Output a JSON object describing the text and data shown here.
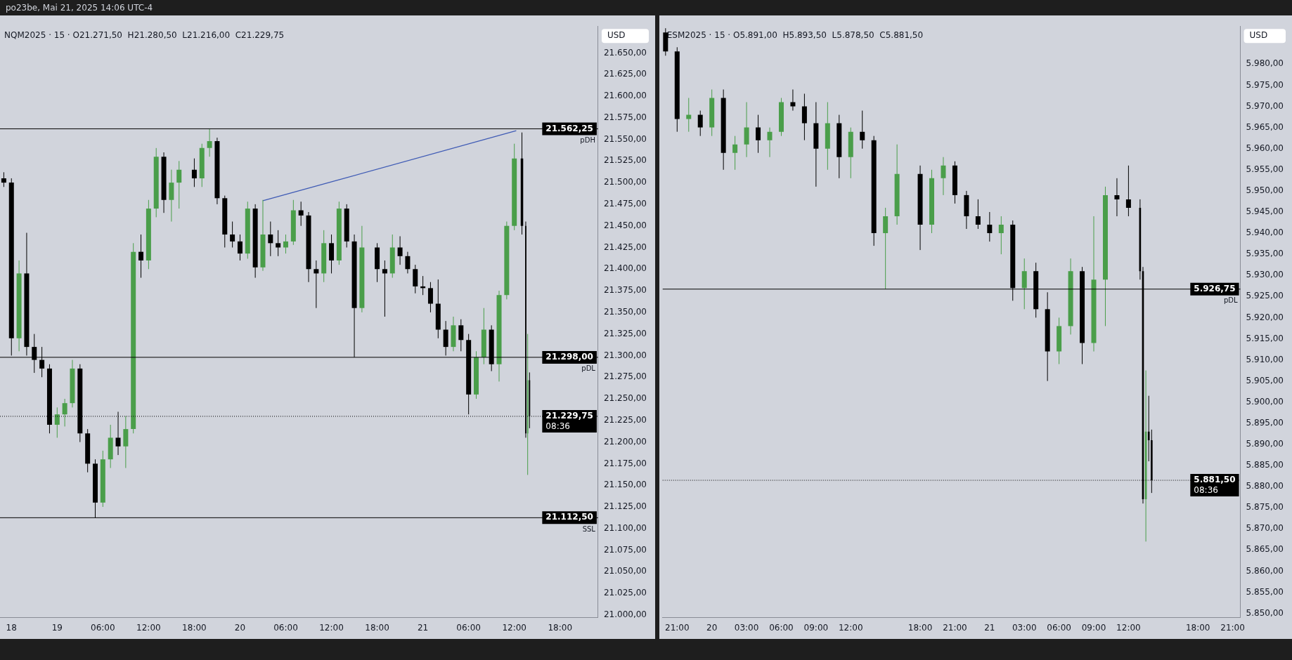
{
  "chart_data": [
    {
      "type": "candlestick",
      "title": "NQM2025 · 15 · O21.271,50  H21.280,50  L21.216,00  C21.229,75",
      "ylabel": "USD",
      "annotations": [
        "po23be, Mai 21, 2025 14:06 UTC-4",
        {
          "text": "pDH",
          "y": 21562.25
        },
        {
          "text": "pDL",
          "y": 21298
        },
        {
          "text": "SSL",
          "y": 21112.5
        },
        {
          "text": "08:36",
          "y": 21229.75
        }
      ],
      "x": [
        "2025-05-18T17:00",
        "2025-05-18T18:00",
        "2025-05-18T19:00",
        "2025-05-18T20:00",
        "2025-05-18T21:00",
        "2025-05-18T22:00",
        "2025-05-18T23:00",
        "2025-05-19T00:00",
        "2025-05-19T01:00",
        "2025-05-19T02:00",
        "2025-05-19T03:00",
        "2025-05-19T04:00",
        "2025-05-19T05:00",
        "2025-05-19T06:00",
        "2025-05-19T07:00",
        "2025-05-19T08:00",
        "2025-05-19T09:00",
        "2025-05-19T10:00",
        "2025-05-19T11:00",
        "2025-05-19T12:00",
        "2025-05-19T13:00",
        "2025-05-19T14:00",
        "2025-05-19T15:00",
        "2025-05-19T16:00",
        "2025-05-19T18:00",
        "2025-05-19T19:00",
        "2025-05-19T20:00",
        "2025-05-19T21:00",
        "2025-05-19T22:00",
        "2025-05-19T23:00",
        "2025-05-20T00:00",
        "2025-05-20T01:00",
        "2025-05-20T02:00",
        "2025-05-20T03:00",
        "2025-05-20T04:00",
        "2025-05-20T05:00",
        "2025-05-20T06:00",
        "2025-05-20T07:00",
        "2025-05-20T08:00",
        "2025-05-20T09:00",
        "2025-05-20T10:00",
        "2025-05-20T11:00",
        "2025-05-20T12:00",
        "2025-05-20T13:00",
        "2025-05-20T14:00",
        "2025-05-20T15:00",
        "2025-05-20T16:00",
        "2025-05-20T18:00",
        "2025-05-20T19:00",
        "2025-05-20T20:00",
        "2025-05-20T21:00",
        "2025-05-20T22:00",
        "2025-05-20T23:00",
        "2025-05-21T00:00",
        "2025-05-21T01:00",
        "2025-05-21T02:00",
        "2025-05-21T03:00",
        "2025-05-21T04:00",
        "2025-05-21T05:00",
        "2025-05-21T06:00",
        "2025-05-21T07:00",
        "2025-05-21T08:00",
        "2025-05-21T09:00",
        "2025-05-21T10:00",
        "2025-05-21T11:00",
        "2025-05-21T12:00",
        "2025-05-21T13:00",
        "2025-05-21T13:30",
        "2025-05-21T13:45",
        "2025-05-21T14:00"
      ],
      "ohlc": [
        [
          21505,
          21512,
          21495,
          21500
        ],
        [
          21500,
          21505,
          21300,
          21320
        ],
        [
          21320,
          21410,
          21305,
          21395
        ],
        [
          21395,
          21442,
          21300,
          21310
        ],
        [
          21310,
          21325,
          21280,
          21295
        ],
        [
          21295,
          21310,
          21275,
          21285
        ],
        [
          21285,
          21290,
          21210,
          21220
        ],
        [
          21220,
          21240,
          21205,
          21232
        ],
        [
          21232,
          21250,
          21218,
          21245
        ],
        [
          21245,
          21295,
          21240,
          21285
        ],
        [
          21285,
          21290,
          21200,
          21210
        ],
        [
          21210,
          21215,
          21165,
          21175
        ],
        [
          21175,
          21180,
          21112.5,
          21130
        ],
        [
          21130,
          21190,
          21125,
          21180
        ],
        [
          21180,
          21220,
          21170,
          21205
        ],
        [
          21205,
          21235,
          21185,
          21195
        ],
        [
          21195,
          21230,
          21170,
          21215
        ],
        [
          21215,
          21430,
          21210,
          21420
        ],
        [
          21420,
          21440,
          21390,
          21410
        ],
        [
          21410,
          21480,
          21400,
          21470
        ],
        [
          21470,
          21540,
          21460,
          21530
        ],
        [
          21530,
          21535,
          21465,
          21480
        ],
        [
          21480,
          21515,
          21455,
          21500
        ],
        [
          21500,
          21525,
          21470,
          21515
        ],
        [
          21515,
          21528,
          21495,
          21505
        ],
        [
          21505,
          21545,
          21495,
          21540
        ],
        [
          21540,
          21562.25,
          21530,
          21548
        ],
        [
          21548,
          21552,
          21475,
          21482
        ],
        [
          21482,
          21485,
          21425,
          21440
        ],
        [
          21440,
          21455,
          21425,
          21432
        ],
        [
          21432,
          21440,
          21410,
          21418
        ],
        [
          21418,
          21478,
          21412,
          21470
        ],
        [
          21470,
          21475,
          21390,
          21402
        ],
        [
          21402,
          21480,
          21398,
          21440
        ],
        [
          21440,
          21455,
          21415,
          21430
        ],
        [
          21430,
          21445,
          21415,
          21425
        ],
        [
          21425,
          21440,
          21418,
          21432
        ],
        [
          21432,
          21480,
          21428,
          21468
        ],
        [
          21468,
          21478,
          21450,
          21462
        ],
        [
          21462,
          21466,
          21385,
          21400
        ],
        [
          21400,
          21410,
          21355,
          21395
        ],
        [
          21395,
          21445,
          21385,
          21430
        ],
        [
          21430,
          21440,
          21395,
          21410
        ],
        [
          21410,
          21478,
          21405,
          21470
        ],
        [
          21470,
          21475,
          21425,
          21432
        ],
        [
          21432,
          21440,
          21298,
          21355
        ],
        [
          21355,
          21450,
          21350,
          21425
        ],
        [
          21425,
          21430,
          21385,
          21400
        ],
        [
          21400,
          21410,
          21345,
          21395
        ],
        [
          21395,
          21440,
          21390,
          21425
        ],
        [
          21425,
          21438,
          21405,
          21415
        ],
        [
          21415,
          21420,
          21395,
          21400
        ],
        [
          21400,
          21405,
          21372,
          21380
        ],
        [
          21380,
          21392,
          21370,
          21378
        ],
        [
          21378,
          21385,
          21350,
          21360
        ],
        [
          21360,
          21388,
          21320,
          21330
        ],
        [
          21330,
          21340,
          21300,
          21310
        ],
        [
          21310,
          21345,
          21305,
          21335
        ],
        [
          21335,
          21342,
          21305,
          21318
        ],
        [
          21318,
          21325,
          21232,
          21255
        ],
        [
          21255,
          21305,
          21250,
          21298
        ],
        [
          21298,
          21355,
          21290,
          21330
        ],
        [
          21330,
          21335,
          21282,
          21290
        ],
        [
          21290,
          21375,
          21270,
          21370
        ],
        [
          21370,
          21455,
          21365,
          21450
        ],
        [
          21450,
          21545,
          21445,
          21528
        ],
        [
          21528,
          21558,
          21440,
          21450
        ],
        [
          21450,
          21455,
          21205,
          21210
        ],
        [
          21210,
          21325,
          21162,
          21271.5
        ],
        [
          21271.5,
          21280.5,
          21216,
          21229.75
        ]
      ],
      "colors": [
        "#000000",
        "#000000",
        "#4a9e4a",
        "#000000",
        "#000000",
        "#000000",
        "#000000",
        "#4a9e4a",
        "#4a9e4a",
        "#4a9e4a",
        "#000000",
        "#000000",
        "#000000",
        "#4a9e4a",
        "#4a9e4a",
        "#000000",
        "#4a9e4a",
        "#4a9e4a",
        "#000000",
        "#4a9e4a",
        "#4a9e4a",
        "#000000",
        "#4a9e4a",
        "#4a9e4a",
        "#000000",
        "#4a9e4a",
        "#4a9e4a",
        "#000000",
        "#000000",
        "#000000",
        "#000000",
        "#4a9e4a",
        "#000000",
        "#4a9e4a",
        "#000000",
        "#000000",
        "#4a9e4a",
        "#4a9e4a",
        "#000000",
        "#000000",
        "#000000",
        "#4a9e4a",
        "#000000",
        "#4a9e4a",
        "#000000",
        "#000000",
        "#4a9e4a",
        "#000000",
        "#000000",
        "#4a9e4a",
        "#000000",
        "#000000",
        "#000000",
        "#000000",
        "#000000",
        "#000000",
        "#000000",
        "#4a9e4a",
        "#000000",
        "#000000",
        "#4a9e4a",
        "#4a9e4a",
        "#000000",
        "#4a9e4a",
        "#4a9e4a",
        "#4a9e4a",
        "#000000",
        "#000000",
        "#4a9e4a",
        "#000000"
      ],
      "series": [
        {
          "type": "line",
          "color": "#3f5bb5",
          "x": [
            "2025-05-20T03:00",
            "2025-05-21T12:15"
          ],
          "values": [
            21479,
            21560
          ]
        }
      ],
      "xlim": [
        "2025-05-18T16:30",
        "2025-05-21T23:00"
      ],
      "xticks": [
        {
          "value": "2025-05-18T18:00",
          "label": "18"
        },
        {
          "value": "2025-05-19T00:00",
          "label": "19"
        },
        {
          "value": "2025-05-19T06:00",
          "label": "06:00"
        },
        {
          "value": "2025-05-19T12:00",
          "label": "12:00"
        },
        {
          "value": "2025-05-19T18:00",
          "label": "18:00"
        },
        {
          "value": "2025-05-20T00:00",
          "label": "20"
        },
        {
          "value": "2025-05-20T06:00",
          "label": "06:00"
        },
        {
          "value": "2025-05-20T12:00",
          "label": "12:00"
        },
        {
          "value": "2025-05-20T18:00",
          "label": "18:00"
        },
        {
          "value": "2025-05-21T00:00",
          "label": "21"
        },
        {
          "value": "2025-05-21T06:00",
          "label": "06:00"
        },
        {
          "value": "2025-05-21T12:00",
          "label": "12:00"
        },
        {
          "value": "2025-05-21T18:00",
          "label": "18:00"
        }
      ],
      "ylim": [
        20997,
        21681
      ],
      "yticks": [
        {
          "value": 21000,
          "label": "21.000,00"
        },
        {
          "value": 21025,
          "label": "21.025,00"
        },
        {
          "value": 21050,
          "label": "21.050,00"
        },
        {
          "value": 21075,
          "label": "21.075,00"
        },
        {
          "value": 21100,
          "label": "21.100,00"
        },
        {
          "value": 21125,
          "label": "21.125,00"
        },
        {
          "value": 21150,
          "label": "21.150,00"
        },
        {
          "value": 21175,
          "label": "21.175,00"
        },
        {
          "value": 21200,
          "label": "21.200,00"
        },
        {
          "value": 21225,
          "label": "21.225,00"
        },
        {
          "value": 21250,
          "label": "21.250,00"
        },
        {
          "value": 21275,
          "label": "21.275,00"
        },
        {
          "value": 21300,
          "label": "21.300,00"
        },
        {
          "value": 21325,
          "label": "21.325,00"
        },
        {
          "value": 21350,
          "label": "21.350,00"
        },
        {
          "value": 21375,
          "label": "21.375,00"
        },
        {
          "value": 21400,
          "label": "21.400,00"
        },
        {
          "value": 21425,
          "label": "21.425,00"
        },
        {
          "value": 21450,
          "label": "21.450,00"
        },
        {
          "value": 21475,
          "label": "21.475,00"
        },
        {
          "value": 21500,
          "label": "21.500,00"
        },
        {
          "value": 21525,
          "label": "21.525,00"
        },
        {
          "value": 21550,
          "label": "21.550,00"
        },
        {
          "value": 21575,
          "label": "21.575,00"
        },
        {
          "value": 21600,
          "label": "21.600,00"
        },
        {
          "value": 21625,
          "label": "21.625,00"
        },
        {
          "value": 21650,
          "label": "21.650,00"
        }
      ],
      "ref_lines": [
        {
          "axis": "y",
          "value": 21562.25,
          "label": "21.562,25",
          "color": "#000000"
        },
        {
          "axis": "y",
          "value": 21298,
          "label": "21.298,00",
          "color": "#000000"
        },
        {
          "axis": "y",
          "value": 21112.5,
          "label": "21.112,50",
          "color": "#000000"
        },
        {
          "axis": "y",
          "value": 21229.75,
          "label": "21.229,75",
          "color": "#000000",
          "line_style": "dotted"
        }
      ]
    },
    {
      "type": "candlestick",
      "title": "ESM2025 · 15 · O5.891,00  H5.893,50  L5.878,50  C5.881,50",
      "ylabel": "USD",
      "annotations": [
        {
          "text": "pDL",
          "y": 5926.75
        },
        {
          "text": "08:36",
          "y": 5881.5
        }
      ],
      "x": [
        "2025-05-19T20:00",
        "2025-05-19T21:00",
        "2025-05-19T22:00",
        "2025-05-19T23:00",
        "2025-05-20T00:00",
        "2025-05-20T01:00",
        "2025-05-20T02:00",
        "2025-05-20T03:00",
        "2025-05-20T04:00",
        "2025-05-20T05:00",
        "2025-05-20T06:00",
        "2025-05-20T07:00",
        "2025-05-20T08:00",
        "2025-05-20T09:00",
        "2025-05-20T10:00",
        "2025-05-20T11:00",
        "2025-05-20T12:00",
        "2025-05-20T13:00",
        "2025-05-20T14:00",
        "2025-05-20T15:00",
        "2025-05-20T16:00",
        "2025-05-20T18:00",
        "2025-05-20T19:00",
        "2025-05-20T20:00",
        "2025-05-20T21:00",
        "2025-05-20T22:00",
        "2025-05-20T23:00",
        "2025-05-21T00:00",
        "2025-05-21T01:00",
        "2025-05-21T02:00",
        "2025-05-21T03:00",
        "2025-05-21T04:00",
        "2025-05-21T05:00",
        "2025-05-21T06:00",
        "2025-05-21T07:00",
        "2025-05-21T08:00",
        "2025-05-21T09:00",
        "2025-05-21T10:00",
        "2025-05-21T11:00",
        "2025-05-21T12:00",
        "2025-05-21T13:00",
        "2025-05-21T13:15",
        "2025-05-21T13:30",
        "2025-05-21T13:45",
        "2025-05-21T14:00"
      ],
      "ohlc": [
        [
          5987.5,
          5988.5,
          5982,
          5983
        ],
        [
          5983,
          5984,
          5964,
          5967
        ],
        [
          5967,
          5972,
          5964,
          5968
        ],
        [
          5968,
          5969,
          5963,
          5965
        ],
        [
          5965,
          5974,
          5963,
          5972
        ],
        [
          5972,
          5974,
          5955,
          5959
        ],
        [
          5959,
          5963,
          5955,
          5961
        ],
        [
          5961,
          5971,
          5958,
          5965
        ],
        [
          5965,
          5968,
          5959,
          5962
        ],
        [
          5962,
          5965,
          5958,
          5964
        ],
        [
          5964,
          5972,
          5963,
          5971
        ],
        [
          5971,
          5974,
          5969,
          5970
        ],
        [
          5970,
          5973,
          5962,
          5966
        ],
        [
          5966,
          5971,
          5951,
          5960
        ],
        [
          5960,
          5971,
          5955,
          5966
        ],
        [
          5966,
          5968,
          5953,
          5958
        ],
        [
          5958,
          5965,
          5953,
          5964
        ],
        [
          5964,
          5969,
          5960,
          5962
        ],
        [
          5962,
          5963,
          5937,
          5940
        ],
        [
          5940,
          5946,
          5926.75,
          5944
        ],
        [
          5944,
          5961,
          5942,
          5954
        ],
        [
          5954,
          5956,
          5936,
          5942
        ],
        [
          5942,
          5955,
          5940,
          5953
        ],
        [
          5953,
          5958,
          5949,
          5956
        ],
        [
          5956,
          5957,
          5947,
          5949
        ],
        [
          5949,
          5950,
          5941,
          5944
        ],
        [
          5944,
          5948,
          5941,
          5942
        ],
        [
          5942,
          5945,
          5938,
          5940
        ],
        [
          5940,
          5944,
          5935,
          5942
        ],
        [
          5942,
          5943,
          5924,
          5927
        ],
        [
          5927,
          5934,
          5922,
          5931
        ],
        [
          5931,
          5933,
          5920,
          5922
        ],
        [
          5922,
          5926,
          5905,
          5912
        ],
        [
          5912,
          5920,
          5909,
          5918
        ],
        [
          5918,
          5934,
          5916,
          5931
        ],
        [
          5931,
          5932,
          5909,
          5914
        ],
        [
          5914,
          5944,
          5912,
          5929
        ],
        [
          5929,
          5951,
          5918,
          5949
        ],
        [
          5949,
          5953,
          5944,
          5948
        ],
        [
          5948,
          5956,
          5944,
          5946
        ],
        [
          5946,
          5948,
          5929,
          5931
        ],
        [
          5931,
          5932,
          5876,
          5877
        ],
        [
          5877,
          5907.5,
          5867,
          5893
        ],
        [
          5893,
          5901.5,
          5886,
          5891
        ],
        [
          5891,
          5893.5,
          5878.5,
          5881.5
        ]
      ],
      "colors": [
        "#000000",
        "#000000",
        "#4a9e4a",
        "#000000",
        "#4a9e4a",
        "#000000",
        "#4a9e4a",
        "#4a9e4a",
        "#000000",
        "#4a9e4a",
        "#4a9e4a",
        "#000000",
        "#000000",
        "#000000",
        "#4a9e4a",
        "#000000",
        "#4a9e4a",
        "#000000",
        "#000000",
        "#4a9e4a",
        "#4a9e4a",
        "#000000",
        "#4a9e4a",
        "#4a9e4a",
        "#000000",
        "#000000",
        "#000000",
        "#000000",
        "#4a9e4a",
        "#000000",
        "#4a9e4a",
        "#000000",
        "#000000",
        "#4a9e4a",
        "#4a9e4a",
        "#000000",
        "#4a9e4a",
        "#4a9e4a",
        "#000000",
        "#000000",
        "#000000",
        "#000000",
        "#4a9e4a",
        "#000000",
        "#000000"
      ],
      "xlim": [
        "2025-05-19T19:45",
        "2025-05-21T21:40"
      ],
      "xticks": [
        {
          "value": "2025-05-19T21:00",
          "label": "21:00"
        },
        {
          "value": "2025-05-20T00:00",
          "label": "20"
        },
        {
          "value": "2025-05-20T03:00",
          "label": "03:00"
        },
        {
          "value": "2025-05-20T06:00",
          "label": "06:00"
        },
        {
          "value": "2025-05-20T09:00",
          "label": "09:00"
        },
        {
          "value": "2025-05-20T12:00",
          "label": "12:00"
        },
        {
          "value": "2025-05-20T18:00",
          "label": "18:00"
        },
        {
          "value": "2025-05-20T21:00",
          "label": "21:00"
        },
        {
          "value": "2025-05-21T00:00",
          "label": "21"
        },
        {
          "value": "2025-05-21T03:00",
          "label": "03:00"
        },
        {
          "value": "2025-05-21T06:00",
          "label": "06:00"
        },
        {
          "value": "2025-05-21T09:00",
          "label": "09:00"
        },
        {
          "value": "2025-05-21T12:00",
          "label": "12:00"
        },
        {
          "value": "2025-05-21T18:00",
          "label": "18:00"
        },
        {
          "value": "2025-05-21T21:00",
          "label": "21:00"
        }
      ],
      "ylim": [
        5849,
        5989
      ],
      "yticks": [
        {
          "value": 5850,
          "label": "5.850,00"
        },
        {
          "value": 5855,
          "label": "5.855,00"
        },
        {
          "value": 5860,
          "label": "5.860,00"
        },
        {
          "value": 5865,
          "label": "5.865,00"
        },
        {
          "value": 5870,
          "label": "5.870,00"
        },
        {
          "value": 5875,
          "label": "5.875,00"
        },
        {
          "value": 5880,
          "label": "5.880,00"
        },
        {
          "value": 5885,
          "label": "5.885,00"
        },
        {
          "value": 5890,
          "label": "5.890,00"
        },
        {
          "value": 5895,
          "label": "5.895,00"
        },
        {
          "value": 5900,
          "label": "5.900,00"
        },
        {
          "value": 5905,
          "label": "5.905,00"
        },
        {
          "value": 5910,
          "label": "5.910,00"
        },
        {
          "value": 5915,
          "label": "5.915,00"
        },
        {
          "value": 5920,
          "label": "5.920,00"
        },
        {
          "value": 5925,
          "label": "5.925,00"
        },
        {
          "value": 5930,
          "label": "5.930,00"
        },
        {
          "value": 5935,
          "label": "5.935,00"
        },
        {
          "value": 5940,
          "label": "5.940,00"
        },
        {
          "value": 5945,
          "label": "5.945,00"
        },
        {
          "value": 5950,
          "label": "5.950,00"
        },
        {
          "value": 5955,
          "label": "5.955,00"
        },
        {
          "value": 5960,
          "label": "5.960,00"
        },
        {
          "value": 5965,
          "label": "5.965,00"
        },
        {
          "value": 5970,
          "label": "5.970,00"
        },
        {
          "value": 5975,
          "label": "5.975,00"
        },
        {
          "value": 5980,
          "label": "5.980,00"
        }
      ],
      "ref_lines": [
        {
          "axis": "y",
          "value": 5926.75,
          "label": "5.926,75",
          "color": "#000000"
        },
        {
          "axis": "y",
          "value": 5881.5,
          "label": "5.881,50",
          "color": "#000000",
          "line_style": "dotted"
        }
      ]
    }
  ]
}
